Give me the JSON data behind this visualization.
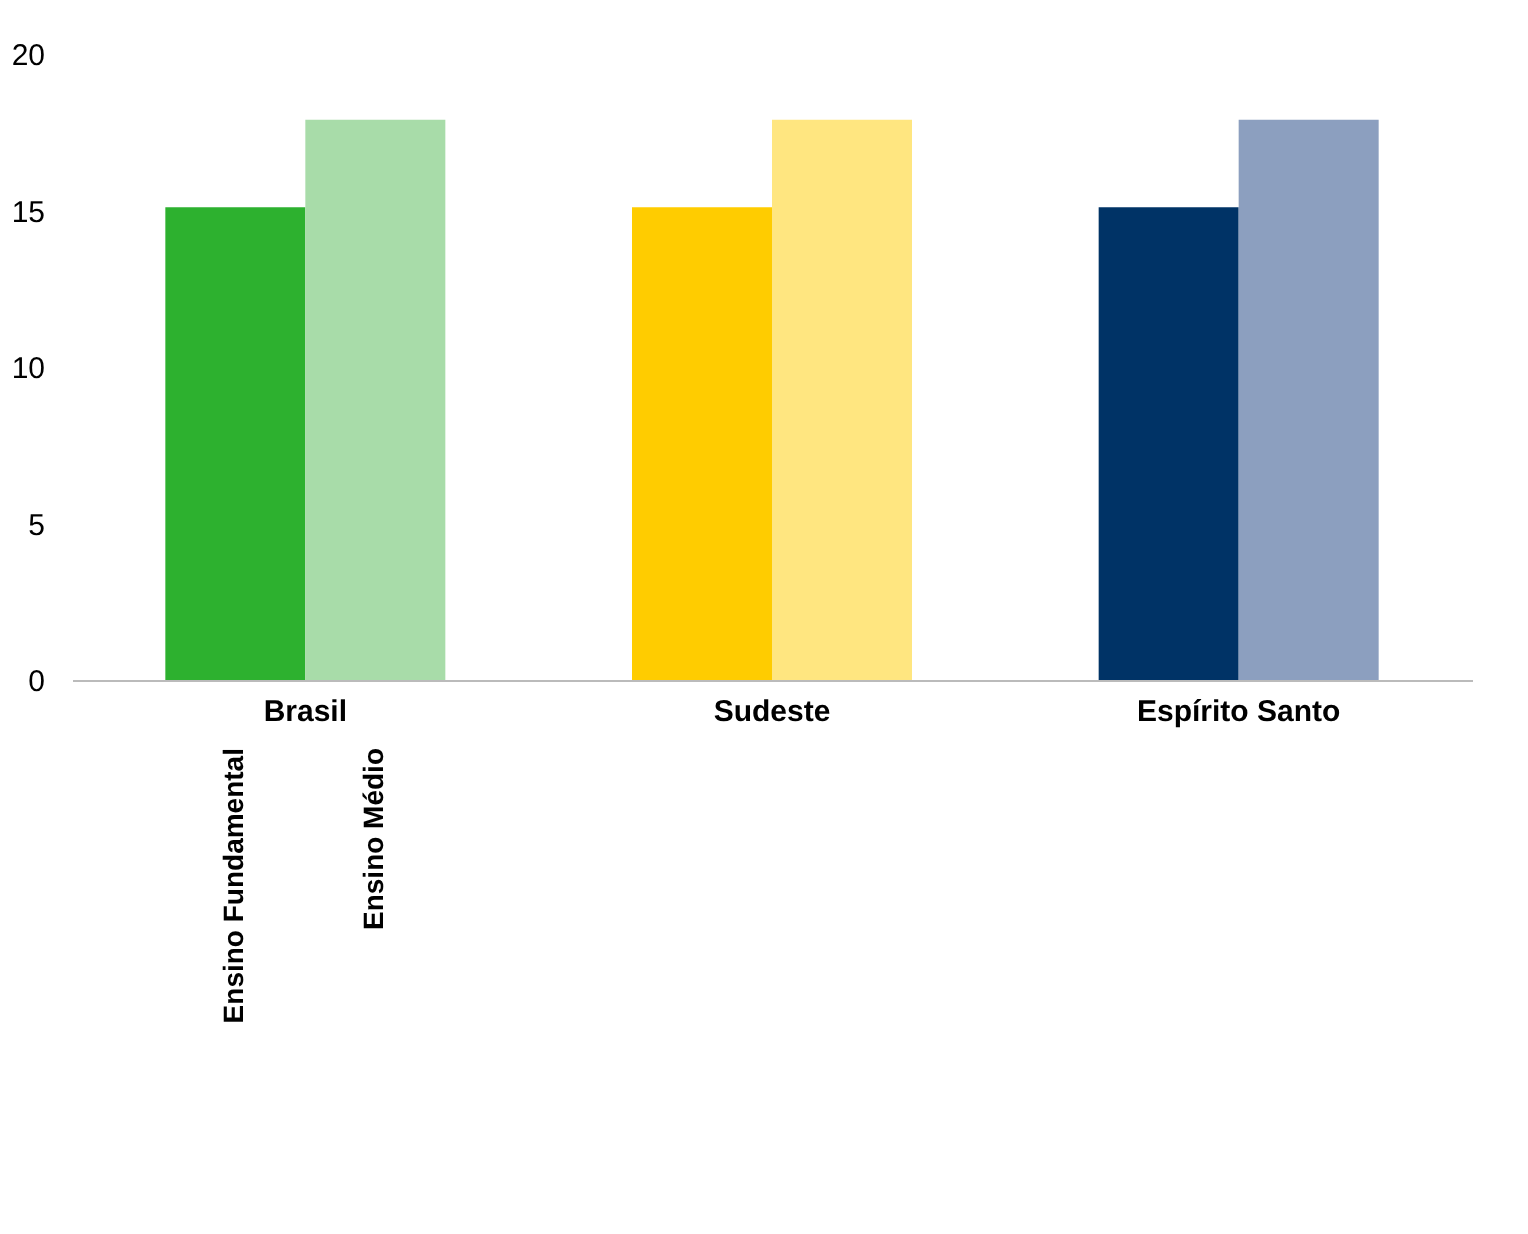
{
  "chart_data": {
    "type": "bar",
    "categories": [
      "Brasil",
      "Sudeste",
      "Espírito Santo"
    ],
    "series": [
      {
        "name": "Ensino Fundamental",
        "colors": [
          "#2db12f",
          "#ffcc00",
          "#003366"
        ],
        "values": [
          15.1,
          15.1,
          15.1
        ]
      },
      {
        "name": "Ensino Médio",
        "colors": [
          "#a8dca9",
          "#ffe680",
          "#8c9fbf"
        ],
        "values": [
          17.9,
          17.9,
          17.9
        ]
      }
    ],
    "ylim": [
      0,
      20
    ],
    "yticks": [
      0,
      5,
      10,
      15,
      20
    ],
    "grid": false,
    "legend": false
  }
}
